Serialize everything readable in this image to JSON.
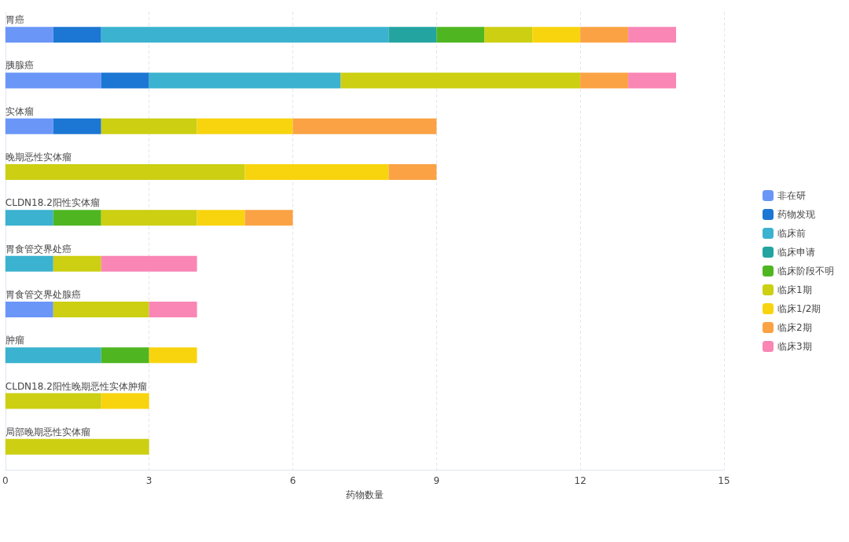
{
  "chart_data": {
    "type": "bar",
    "orientation": "horizontal",
    "stacked": true,
    "xlabel": "药物数量",
    "categories": [
      "胃癌",
      "胰腺癌",
      "实体瘤",
      "晚期恶性实体瘤",
      "CLDN18.2阳性实体瘤",
      "胃食管交界处癌",
      "胃食管交界处腺癌",
      "肿瘤",
      "CLDN18.2阳性晚期恶性实体肿瘤",
      "局部晚期恶性实体瘤"
    ],
    "series": [
      {
        "name": "非在研",
        "color": "#6a96f8",
        "values": [
          1,
          2,
          1,
          null,
          null,
          null,
          1,
          null,
          null,
          null
        ]
      },
      {
        "name": "药物发现",
        "color": "#1b77d3",
        "values": [
          1,
          1,
          1,
          null,
          null,
          null,
          null,
          null,
          null,
          null
        ]
      },
      {
        "name": "临床前",
        "color": "#3bb2cf",
        "values": [
          6,
          4,
          null,
          null,
          1,
          1,
          null,
          2,
          null,
          null
        ]
      },
      {
        "name": "临床申请",
        "color": "#23a4a1",
        "values": [
          1,
          null,
          null,
          null,
          null,
          null,
          null,
          null,
          null,
          null
        ]
      },
      {
        "name": "临床阶段不明",
        "color": "#4fb622",
        "values": [
          1,
          null,
          null,
          null,
          1,
          null,
          null,
          1,
          null,
          null
        ]
      },
      {
        "name": "临床1期",
        "color": "#cccf12",
        "values": [
          1,
          5,
          2,
          5,
          2,
          1,
          2,
          null,
          2,
          3
        ]
      },
      {
        "name": "临床1/2期",
        "color": "#f8d40f",
        "values": [
          1,
          null,
          2,
          3,
          1,
          null,
          null,
          1,
          1,
          null
        ]
      },
      {
        "name": "临床2期",
        "color": "#fba244",
        "values": [
          1,
          1,
          3,
          1,
          1,
          null,
          null,
          null,
          null,
          null
        ]
      },
      {
        "name": "临床3期",
        "color": "#f986b5",
        "values": [
          1,
          1,
          null,
          null,
          null,
          2,
          1,
          null,
          null,
          null
        ]
      }
    ],
    "xlim": [
      0,
      15
    ],
    "xticks": [
      0,
      3,
      6,
      9,
      12,
      15
    ],
    "grid": "x",
    "legend": "right"
  }
}
